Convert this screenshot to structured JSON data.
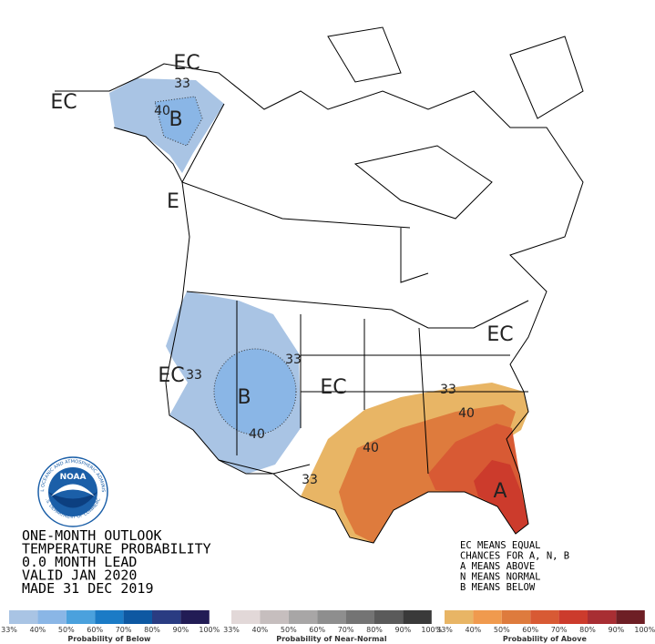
{
  "map": {
    "labels": [
      "EC",
      "33",
      "40",
      "B",
      "EC",
      "E",
      "33",
      "B",
      "40",
      "EC",
      "33",
      "EC",
      "EC",
      "33",
      "40",
      "40",
      "33",
      "A"
    ]
  },
  "logo": {
    "name": "NOAA",
    "ring_top": "NATIONAL OCEANIC AND ATMOSPHERIC ADMINISTRATION",
    "ring_bottom": "U.S. DEPARTMENT OF COMMERCE"
  },
  "title_block": [
    "ONE-MONTH OUTLOOK",
    "TEMPERATURE PROBABILITY",
    "0.0 MONTH LEAD",
    "VALID JAN 2020",
    "MADE 31 DEC 2019"
  ],
  "key": [
    "EC MEANS EQUAL",
    "CHANCES FOR A, N, B",
    "A MEANS ABOVE",
    "N MEANS NORMAL",
    "B MEANS BELOW"
  ],
  "colorbars": [
    {
      "caption": "Probability of Below",
      "labels": [
        "33%",
        "40%",
        "50%",
        "60%",
        "70%",
        "80%",
        "90%",
        "100%"
      ],
      "colors": [
        "#a9c4e4",
        "#8ab6e6",
        "#4ba1dd",
        "#1b7bc6",
        "#0e58a2",
        "#2a3c82",
        "#221c55"
      ]
    },
    {
      "caption": "Probability of Near-Normal",
      "labels": [
        "33%",
        "40%",
        "50%",
        "60%",
        "70%",
        "80%",
        "90%",
        "100%"
      ],
      "colors": [
        "#e2d8d8",
        "#c6bebe",
        "#a8a6a6",
        "#8e8e8e",
        "#747474",
        "#5a5a5a",
        "#3a3a3a"
      ]
    },
    {
      "caption": "Probability of Above",
      "labels": [
        "33%",
        "40%",
        "50%",
        "60%",
        "70%",
        "80%",
        "90%",
        "100%"
      ],
      "colors": [
        "#e8b565",
        "#f09a4e",
        "#de7b3d",
        "#d85a34",
        "#cc3b2c",
        "#a82e33",
        "#6e1f25"
      ]
    }
  ]
}
